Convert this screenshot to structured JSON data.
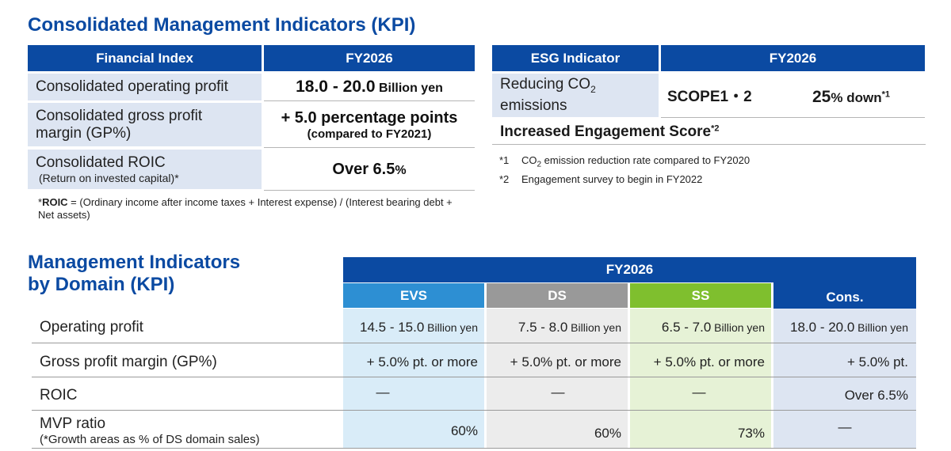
{
  "kpi": {
    "title": "Consolidated Management Indicators (KPI)",
    "fin_header": "Financial Index",
    "fy_header": "FY2026",
    "rows": [
      {
        "label": "Consolidated operating profit",
        "value_main": "18.0 - 20.0",
        "value_unit": "Billion yen"
      },
      {
        "label_line1": "Consolidated gross profit",
        "label_line2": "margin (GP%)",
        "value_line1": "+ 5.0 percentage points",
        "value_line2": "(compared to FY2021)"
      },
      {
        "label": "Consolidated ROIC",
        "label_sub": "(Return on invested capital)*",
        "value_main": "Over 6.5",
        "value_unit": "%"
      }
    ],
    "footnote_bold": "ROIC",
    "footnote_star": "*",
    "footnote_rest_1": " = (Ordinary income after income taxes + Interest expense) / (Interest bearing debt +",
    "footnote_rest_2": "Net assets)"
  },
  "esg": {
    "header": "ESG Indicator",
    "fy_header": "FY2026",
    "co2_label_a": "Reducing CO",
    "co2_label_sub": "2",
    "co2_label_b": "emissions",
    "scope": "SCOPE1・2",
    "target_num": "25",
    "target_text": "% down",
    "target_sup": "*1",
    "engagement": "Increased Engagement Score",
    "engagement_sup": "*2",
    "notes": [
      {
        "mark": "*1",
        "text_a": "CO",
        "text_sub": "2",
        "text_b": " emission reduction rate compared to FY2020"
      },
      {
        "mark": "*2",
        "text": "Engagement survey to begin in FY2022"
      }
    ]
  },
  "domain": {
    "title_line1": "Management Indicators",
    "title_line2": "by Domain (KPI)",
    "fy_header": "FY2026",
    "columns": [
      "EVS",
      "DS",
      "SS",
      "Cons."
    ],
    "rows": [
      {
        "label": "Operating profit",
        "cells": [
          {
            "num": "14.5 - 15.0",
            "unit": " Billion yen"
          },
          {
            "num": "7.5 - 8.0",
            "unit": " Billion yen"
          },
          {
            "num": "6.5 - 7.0",
            "unit": " Billion yen"
          },
          {
            "num": "18.0 - 20.0",
            "unit": " Billion yen"
          }
        ]
      },
      {
        "label": "Gross profit margin (GP%)",
        "cells": [
          "+ 5.0% pt. or more",
          "+ 5.0% pt. or more",
          "+ 5.0% pt. or more",
          "+ 5.0% pt."
        ]
      },
      {
        "label": "ROIC",
        "cells": [
          "―",
          "―",
          "―",
          "Over 6.5%"
        ]
      },
      {
        "label": "MVP ratio",
        "sub": "(*Growth areas as % of DS domain sales)",
        "cells": [
          "60%",
          "60%",
          "73%",
          "―"
        ]
      }
    ]
  },
  "colors": {
    "navy": "#0b4aa2",
    "evs": "#2d8fd3",
    "ds": "#999999",
    "ss": "#7fbf2e",
    "label_bg": "#dde5f2"
  }
}
